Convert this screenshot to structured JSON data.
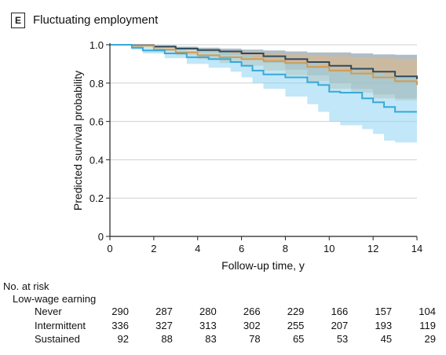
{
  "panel": {
    "letter": "E",
    "title": "Fluctuating employment"
  },
  "chart_data": {
    "type": "line",
    "xlabel": "Follow-up time, y",
    "ylabel": "Predicted survival probability",
    "xlim": [
      0,
      14
    ],
    "ylim": [
      0,
      1.0
    ],
    "x_ticks": [
      "0",
      "2",
      "4",
      "6",
      "8",
      "10",
      "12",
      "14"
    ],
    "y_ticks": [
      "0",
      "0.2",
      "0.4",
      "0.6",
      "0.8",
      "1.0"
    ],
    "grid": "horizontal",
    "series": [
      {
        "color": "#2e4a5c",
        "band_color": "#6f8794",
        "x": [
          0,
          1,
          2,
          3,
          4,
          5,
          6,
          7,
          8,
          9,
          10,
          11,
          12,
          13,
          14
        ],
        "y": [
          1.0,
          0.998,
          0.99,
          0.98,
          0.972,
          0.965,
          0.955,
          0.94,
          0.925,
          0.91,
          0.89,
          0.875,
          0.86,
          0.835,
          0.82
        ],
        "lower": [
          1.0,
          0.995,
          0.985,
          0.975,
          0.96,
          0.945,
          0.93,
          0.905,
          0.87,
          0.84,
          0.8,
          0.77,
          0.74,
          0.72,
          0.7
        ],
        "upper": [
          1.0,
          1.0,
          0.997,
          0.99,
          0.985,
          0.98,
          0.975,
          0.97,
          0.965,
          0.96,
          0.96,
          0.955,
          0.95,
          0.948,
          0.945
        ]
      },
      {
        "color": "#d49a50",
        "band_color": "#e3b884",
        "x": [
          0,
          1,
          2,
          3,
          4,
          5,
          6,
          7,
          8,
          9,
          10,
          11,
          12,
          13,
          14
        ],
        "y": [
          1.0,
          0.995,
          0.975,
          0.96,
          0.945,
          0.935,
          0.925,
          0.915,
          0.905,
          0.885,
          0.865,
          0.85,
          0.83,
          0.81,
          0.79
        ],
        "lower": [
          1.0,
          0.99,
          0.965,
          0.945,
          0.925,
          0.905,
          0.89,
          0.865,
          0.84,
          0.81,
          0.77,
          0.75,
          0.72,
          0.71,
          0.69
        ],
        "upper": [
          1.0,
          1.0,
          0.99,
          0.98,
          0.97,
          0.965,
          0.96,
          0.955,
          0.95,
          0.945,
          0.94,
          0.935,
          0.93,
          0.925,
          0.92
        ]
      },
      {
        "color": "#38a9d8",
        "band_color": "#8ed4f2",
        "x": [
          0,
          1,
          1.5,
          2.5,
          3.5,
          4.5,
          5.5,
          6,
          6.5,
          7,
          8,
          9,
          9.5,
          10,
          10.5,
          11,
          11.5,
          12,
          12.5,
          13,
          14
        ],
        "y": [
          1.0,
          0.985,
          0.97,
          0.955,
          0.935,
          0.925,
          0.91,
          0.89,
          0.865,
          0.845,
          0.83,
          0.805,
          0.79,
          0.755,
          0.75,
          0.75,
          0.72,
          0.7,
          0.675,
          0.65,
          0.65
        ],
        "lower": [
          1.0,
          0.975,
          0.955,
          0.93,
          0.9,
          0.88,
          0.86,
          0.83,
          0.8,
          0.77,
          0.73,
          0.69,
          0.65,
          0.6,
          0.58,
          0.58,
          0.56,
          0.535,
          0.5,
          0.49,
          0.48
        ],
        "upper": [
          1.0,
          1.0,
          0.99,
          0.98,
          0.97,
          0.965,
          0.955,
          0.945,
          0.93,
          0.92,
          0.91,
          0.9,
          0.89,
          0.875,
          0.87,
          0.865,
          0.855,
          0.85,
          0.84,
          0.83,
          0.825
        ]
      }
    ]
  },
  "risk_table": {
    "title": "No. at risk",
    "subtitle": "Low-wage earning",
    "rows": [
      {
        "label": "Never",
        "values": [
          "290",
          "287",
          "280",
          "266",
          "229",
          "166",
          "157",
          "104"
        ]
      },
      {
        "label": "Intermittent",
        "values": [
          "336",
          "327",
          "313",
          "302",
          "255",
          "207",
          "193",
          "119"
        ]
      },
      {
        "label": "Sustained",
        "values": [
          "92",
          "88",
          "83",
          "78",
          "65",
          "53",
          "45",
          "29"
        ]
      }
    ]
  }
}
